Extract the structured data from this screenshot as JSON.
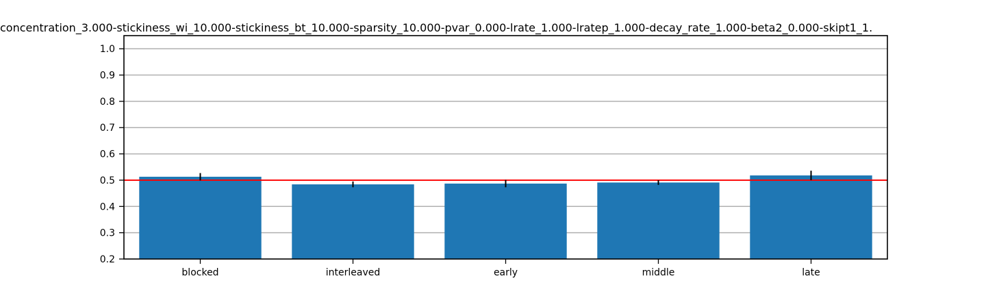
{
  "chart_data": {
    "type": "bar",
    "title": "concentration_3.000-stickiness_wi_10.000-stickiness_bt_10.000-sparsity_10.000-pvar_0.000-lrate_1.000-lratep_1.000-decay_rate_1.000-beta2_0.000-skipt1_1.",
    "xlabel": "",
    "ylabel": "",
    "categories": [
      "blocked",
      "interleaved",
      "early",
      "middle",
      "late"
    ],
    "values": [
      0.513,
      0.484,
      0.487,
      0.491,
      0.518
    ],
    "error": [
      0.014,
      0.011,
      0.014,
      0.009,
      0.018
    ],
    "ylim": [
      0.2,
      1.05
    ],
    "yticks": [
      0.2,
      0.3,
      0.4,
      0.5,
      0.6,
      0.7,
      0.8,
      0.9,
      1.0
    ],
    "ytick_labels": [
      "0.2",
      "0.3",
      "0.4",
      "0.5",
      "0.6",
      "0.7",
      "0.8",
      "0.9",
      "1.0"
    ],
    "reference_line": 0.5,
    "grid": "y",
    "colors": {
      "bar": "#1f77b4",
      "error_bar": "#000000",
      "reference_line": "#ff0000",
      "grid": "#b0b0b0",
      "axes": "#000000"
    }
  }
}
